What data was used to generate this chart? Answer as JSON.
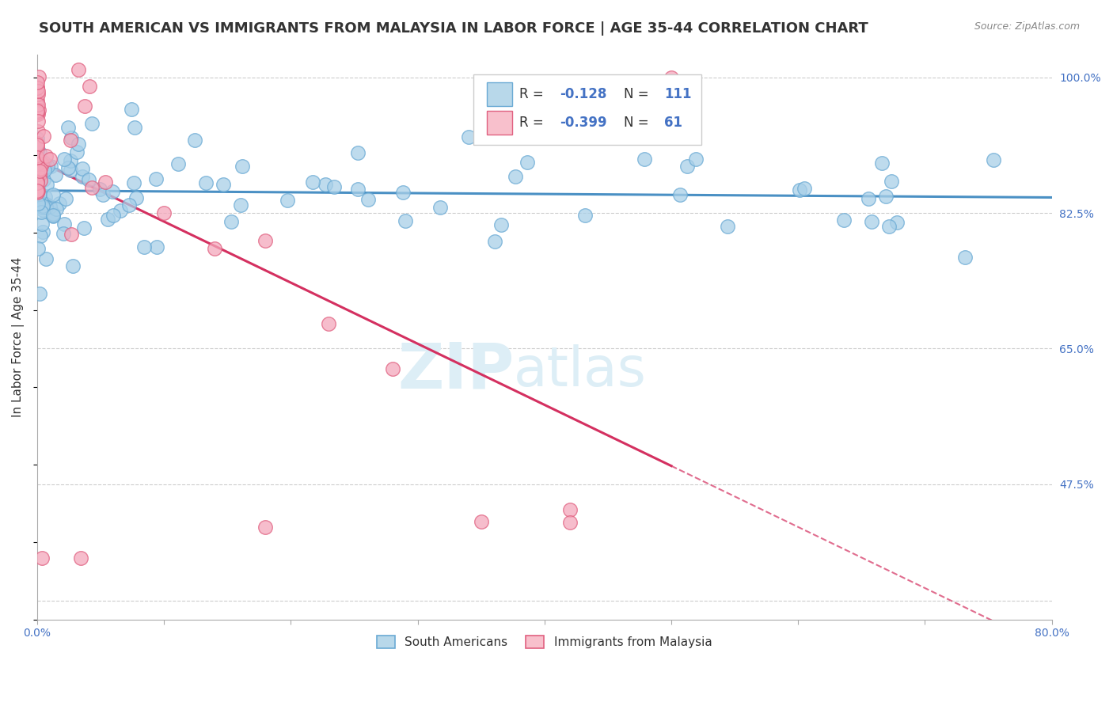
{
  "title": "SOUTH AMERICAN VS IMMIGRANTS FROM MALAYSIA IN LABOR FORCE | AGE 35-44 CORRELATION CHART",
  "source": "Source: ZipAtlas.com",
  "ylabel": "In Labor Force | Age 35-44",
  "xlim": [
    0.0,
    0.8
  ],
  "ylim": [
    0.3,
    1.03
  ],
  "yticks": [
    0.325,
    0.475,
    0.65,
    0.825,
    1.0
  ],
  "yticklabels": [
    "",
    "47.5%",
    "65.0%",
    "82.5%",
    "100.0%"
  ],
  "blue_R": -0.128,
  "blue_N": 111,
  "pink_R": -0.399,
  "pink_N": 61,
  "blue_scatter_color": "#a8cfe8",
  "blue_edge_color": "#6aaad4",
  "pink_scatter_color": "#f4a7bb",
  "pink_edge_color": "#e06080",
  "blue_line_color": "#4a90c4",
  "pink_line_color": "#d43060",
  "legend_blue_fill": "#b8d8ea",
  "legend_pink_fill": "#f8c0cc",
  "grid_color": "#cccccc",
  "watermark_color": "#ddeef6",
  "background_color": "#ffffff",
  "title_fontsize": 13,
  "axis_label_fontsize": 11,
  "tick_fontsize": 10,
  "right_tick_color": "#4472c4",
  "text_color": "#333333",
  "source_color": "#888888"
}
